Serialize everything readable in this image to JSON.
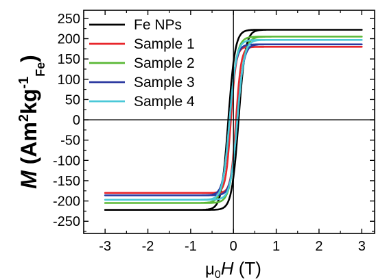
{
  "chart_data": {
    "type": "line",
    "xlabel": {
      "symbol": "μ",
      "subscript": "0",
      "variable": "H",
      "unit": " (T)"
    },
    "ylabel": {
      "variable": "M",
      "unit_open": " (Am",
      "sup1": "2",
      "mid": "kg",
      "sup2": "-1",
      "sub": "Fe",
      "close": ")"
    },
    "xlim": [
      -3.5,
      3.3
    ],
    "ylim": [
      -280,
      270
    ],
    "x_ticks": [
      "-3",
      "-2",
      "-1",
      "0",
      "1",
      "2",
      "3"
    ],
    "y_ticks": [
      "250",
      "200",
      "150",
      "100",
      "50",
      "0",
      "-50",
      "-100",
      "-150",
      "-200",
      "-250"
    ],
    "legend_position": "top-left",
    "reference_lines": {
      "x": 0,
      "y": 0
    },
    "series": [
      {
        "name": "Fe NPs",
        "color": "#000000",
        "saturation": 222,
        "coercivity": 0.12,
        "width": 0.16
      },
      {
        "name": "Sample 1",
        "color": "#e8262b",
        "saturation": 180,
        "coercivity": 0.06,
        "width": 0.12
      },
      {
        "name": "Sample 2",
        "color": "#5ab835",
        "saturation": 205,
        "coercivity": 0.09,
        "width": 0.17
      },
      {
        "name": "Sample 3",
        "color": "#2c3aa0",
        "saturation": 186,
        "coercivity": 0.09,
        "width": 0.15
      },
      {
        "name": "Sample 4",
        "color": "#4ac8d8",
        "saturation": 197,
        "coercivity": 0.09,
        "width": 0.16
      }
    ]
  }
}
